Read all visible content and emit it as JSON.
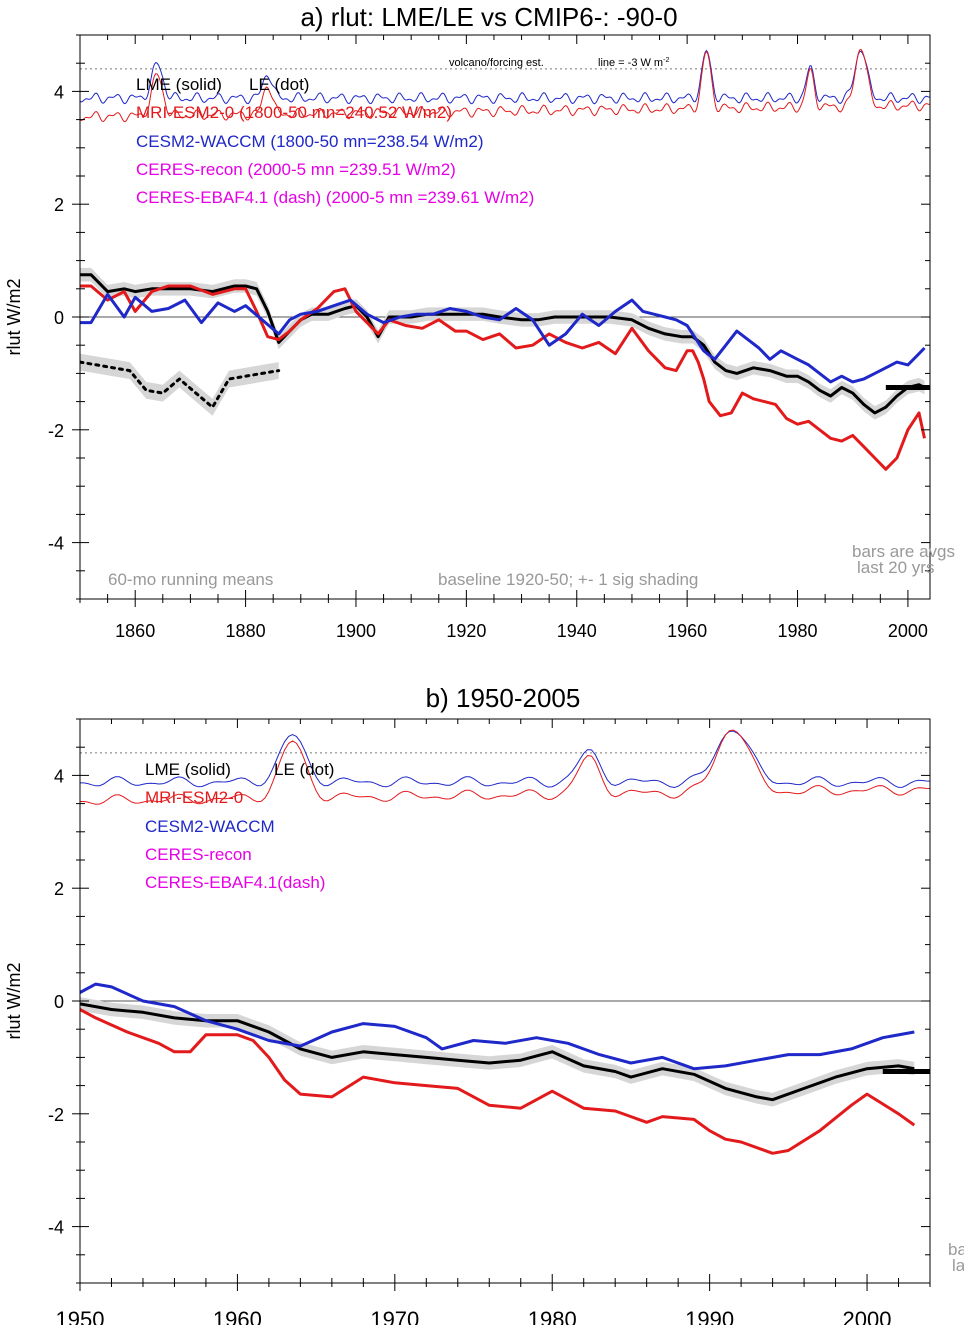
{
  "chart_data": [
    {
      "type": "line",
      "title": "a) rlut: LME/LE vs CMIP6-: -90-0",
      "ylabel": "rlut W/m2",
      "xlabel": "",
      "xlim": [
        1850,
        2004
      ],
      "ylim": [
        -5,
        5
      ],
      "xticks": [
        1860,
        1880,
        1900,
        1920,
        1940,
        1960,
        1980,
        2000
      ],
      "yticks": [
        4,
        2,
        0,
        -2,
        -4
      ],
      "legend": [
        {
          "text": "LME (solid)",
          "color": "#000000"
        },
        {
          "text": "LE (dot)",
          "color": "#000000"
        },
        {
          "text": "MRI-ESM2-0 (1800-50 mn=240.52 W/m2)",
          "color": "#e31a1c"
        },
        {
          "text": "CESM2-WACCM (1800-50 mn=238.54 W/m2)",
          "color": "#1f28c8"
        },
        {
          "text": "CERES-recon (2000-5 mn =239.51 W/m2)",
          "color": "#e600e6"
        },
        {
          "text": "CERES-EBAF4.1 (dash) (2000-5 mn =239.61 W/m2)",
          "color": "#e600e6"
        }
      ],
      "annotations": {
        "volcano": "volcano/forcing est.",
        "line": "line = -3 W m",
        "line_sup": "-2",
        "running": "60-mo running means",
        "baseline": "baseline 1920-50; +- 1 sig shading",
        "bars1": "bars are avgs",
        "bars2": "last 20 yrs"
      },
      "reference_level": 4.4,
      "series": [
        {
          "name": "LME",
          "color": "#000000",
          "style": "solid",
          "width": 3,
          "x": [
            1850,
            1852,
            1855,
            1858,
            1860,
            1863,
            1866,
            1870,
            1874,
            1878,
            1880,
            1882,
            1884,
            1886,
            1888,
            1890,
            1892,
            1895,
            1898,
            1900,
            1902,
            1904,
            1906,
            1908,
            1910,
            1913,
            1916,
            1920,
            1923,
            1926,
            1930,
            1933,
            1936,
            1940,
            1943,
            1946,
            1950,
            1953,
            1956,
            1959,
            1961,
            1963,
            1965,
            1967,
            1969,
            1972,
            1975,
            1978,
            1980,
            1982,
            1984,
            1986,
            1988,
            1990,
            1992,
            1994,
            1996,
            1998,
            2000,
            2002,
            2003
          ],
          "y": [
            0.75,
            0.75,
            0.45,
            0.5,
            0.45,
            0.5,
            0.5,
            0.5,
            0.45,
            0.55,
            0.55,
            0.5,
            0.1,
            -0.45,
            -0.25,
            -0.05,
            0.05,
            0.05,
            0.15,
            0.2,
            0.0,
            -0.35,
            0.0,
            0.0,
            0.0,
            0.05,
            0.05,
            0.05,
            0.05,
            0.0,
            -0.05,
            -0.05,
            0.0,
            0.0,
            0.0,
            0.0,
            -0.05,
            -0.2,
            -0.3,
            -0.35,
            -0.35,
            -0.5,
            -0.8,
            -0.95,
            -1.0,
            -0.9,
            -0.95,
            -1.05,
            -1.05,
            -1.15,
            -1.3,
            -1.4,
            -1.25,
            -1.35,
            -1.55,
            -1.7,
            -1.6,
            -1.4,
            -1.25,
            -1.2,
            -1.25
          ]
        },
        {
          "name": "MRI-ESM2-0",
          "color": "#e31a1c",
          "style": "solid",
          "width": 3,
          "x": [
            1850,
            1852,
            1855,
            1858,
            1860,
            1863,
            1866,
            1870,
            1874,
            1878,
            1880,
            1882,
            1884,
            1886,
            1888,
            1890,
            1893,
            1896,
            1898,
            1900,
            1902,
            1904,
            1906,
            1909,
            1912,
            1915,
            1918,
            1920,
            1923,
            1926,
            1929,
            1932,
            1935,
            1938,
            1941,
            1944,
            1947,
            1950,
            1953,
            1956,
            1958,
            1960,
            1961,
            1962,
            1963,
            1964,
            1966,
            1968,
            1970,
            1972,
            1974,
            1976,
            1978,
            1980,
            1982,
            1984,
            1986,
            1988,
            1990,
            1992,
            1994,
            1996,
            1998,
            2000,
            2002,
            2003
          ],
          "y": [
            0.55,
            0.55,
            0.3,
            0.45,
            0.1,
            0.45,
            0.55,
            0.55,
            0.4,
            0.5,
            0.5,
            0.1,
            -0.35,
            -0.4,
            -0.25,
            -0.05,
            0.15,
            0.45,
            0.5,
            0.1,
            -0.1,
            -0.3,
            -0.05,
            -0.15,
            -0.2,
            -0.05,
            -0.25,
            -0.25,
            -0.4,
            -0.3,
            -0.55,
            -0.5,
            -0.3,
            -0.45,
            -0.55,
            -0.45,
            -0.65,
            -0.2,
            -0.6,
            -0.9,
            -0.95,
            -0.6,
            -0.6,
            -0.8,
            -1.1,
            -1.5,
            -1.75,
            -1.7,
            -1.35,
            -1.45,
            -1.5,
            -1.55,
            -1.8,
            -1.9,
            -1.85,
            -2.0,
            -2.15,
            -2.2,
            -2.1,
            -2.3,
            -2.5,
            -2.7,
            -2.5,
            -2.0,
            -1.7,
            -2.15
          ]
        },
        {
          "name": "CESM2-WACCM",
          "color": "#1f28c8",
          "style": "solid",
          "width": 3,
          "x": [
            1850,
            1852,
            1855,
            1858,
            1860,
            1863,
            1866,
            1869,
            1872,
            1875,
            1878,
            1880,
            1883,
            1886,
            1888,
            1890,
            1893,
            1896,
            1899,
            1902,
            1905,
            1908,
            1911,
            1914,
            1917,
            1920,
            1923,
            1926,
            1929,
            1932,
            1935,
            1938,
            1941,
            1944,
            1947,
            1950,
            1952,
            1954,
            1956,
            1958,
            1960,
            1963,
            1965,
            1967,
            1969,
            1971,
            1973,
            1975,
            1977,
            1980,
            1982,
            1984,
            1986,
            1988,
            1990,
            1992,
            1994,
            1996,
            1998,
            2000,
            2002,
            2003
          ],
          "y": [
            -0.1,
            -0.1,
            0.4,
            0.0,
            0.35,
            0.1,
            0.15,
            0.3,
            -0.1,
            0.25,
            0.1,
            0.2,
            -0.05,
            -0.3,
            -0.05,
            0.05,
            0.1,
            0.2,
            0.3,
            0.05,
            -0.1,
            0.0,
            0.05,
            0.05,
            0.15,
            0.1,
            0.0,
            -0.05,
            0.15,
            -0.05,
            -0.5,
            -0.3,
            0.05,
            -0.15,
            0.1,
            0.3,
            0.1,
            0.05,
            0.0,
            -0.05,
            -0.15,
            -0.6,
            -0.75,
            -0.5,
            -0.25,
            -0.4,
            -0.55,
            -0.75,
            -0.6,
            -0.75,
            -0.85,
            -1.0,
            -1.15,
            -1.05,
            -1.15,
            -1.1,
            -1.0,
            -0.9,
            -0.8,
            -0.85,
            -0.65,
            -0.55
          ]
        },
        {
          "name": "LE",
          "color": "#000000",
          "style": "dot",
          "width": 3,
          "x": [
            1850,
            1853,
            1856,
            1859,
            1862,
            1865,
            1868,
            1871,
            1874,
            1877,
            1880,
            1883,
            1886
          ],
          "y": [
            -0.8,
            -0.85,
            -0.9,
            -0.95,
            -1.3,
            -1.35,
            -1.1,
            -1.35,
            -1.6,
            -1.1,
            -1.05,
            -1.0,
            -0.95
          ]
        }
      ],
      "obs_bar": {
        "x": [
          1996,
          2004
        ],
        "y": -1.25
      }
    },
    {
      "type": "line",
      "title": "b) 1950-2005",
      "ylabel": "rlut W/m2",
      "xlabel": "",
      "xlim": [
        1950,
        2004
      ],
      "ylim": [
        -5,
        5
      ],
      "xticks": [
        1950,
        1960,
        1970,
        1980,
        1990,
        2000
      ],
      "yticks": [
        4,
        2,
        0,
        -2,
        -4
      ],
      "legend": [
        {
          "text": "LME (solid)",
          "color": "#000000"
        },
        {
          "text": "LE (dot)",
          "color": "#000000"
        },
        {
          "text": "MRI-ESM2-0",
          "color": "#e31a1c"
        },
        {
          "text": "CESM2-WACCM",
          "color": "#1f28c8"
        },
        {
          "text": "CERES-recon",
          "color": "#e600e6"
        },
        {
          "text": "CERES-EBAF4.1(dash)",
          "color": "#e600e6"
        }
      ],
      "annotations": {
        "bars1": "ba",
        "bars2": "la"
      },
      "reference_level": 4.4,
      "series": [
        {
          "name": "LME",
          "color": "#000000",
          "style": "solid",
          "width": 3,
          "x": [
            1950,
            1952,
            1954,
            1956,
            1958,
            1960,
            1962,
            1964,
            1966,
            1968,
            1970,
            1972,
            1974,
            1976,
            1978,
            1980,
            1982,
            1984,
            1985,
            1987,
            1989,
            1991,
            1993,
            1994,
            1996,
            1998,
            2000,
            2002,
            2003
          ],
          "y": [
            -0.05,
            -0.15,
            -0.2,
            -0.3,
            -0.35,
            -0.35,
            -0.55,
            -0.85,
            -1.0,
            -0.9,
            -0.95,
            -1.0,
            -1.05,
            -1.1,
            -1.05,
            -0.9,
            -1.15,
            -1.25,
            -1.35,
            -1.2,
            -1.3,
            -1.55,
            -1.7,
            -1.75,
            -1.55,
            -1.35,
            -1.2,
            -1.15,
            -1.2
          ]
        },
        {
          "name": "MRI-ESM2-0",
          "color": "#e31a1c",
          "style": "solid",
          "width": 3,
          "x": [
            1950,
            1951,
            1953,
            1955,
            1956,
            1957,
            1958,
            1960,
            1961,
            1962,
            1963,
            1964,
            1966,
            1968,
            1970,
            1972,
            1974,
            1976,
            1978,
            1979,
            1980,
            1981,
            1982,
            1984,
            1986,
            1987,
            1989,
            1990,
            1991,
            1992,
            1994,
            1995,
            1997,
            1999,
            2000,
            2002,
            2003
          ],
          "y": [
            -0.15,
            -0.3,
            -0.55,
            -0.75,
            -0.9,
            -0.9,
            -0.6,
            -0.6,
            -0.7,
            -1.0,
            -1.4,
            -1.65,
            -1.7,
            -1.35,
            -1.45,
            -1.5,
            -1.55,
            -1.85,
            -1.9,
            -1.75,
            -1.6,
            -1.75,
            -1.9,
            -1.95,
            -2.15,
            -2.05,
            -2.1,
            -2.3,
            -2.45,
            -2.5,
            -2.7,
            -2.65,
            -2.3,
            -1.85,
            -1.65,
            -2.0,
            -2.2
          ]
        },
        {
          "name": "CESM2-WACCM",
          "color": "#1f28c8",
          "style": "solid",
          "width": 3,
          "x": [
            1950,
            1951,
            1952,
            1954,
            1956,
            1958,
            1960,
            1962,
            1964,
            1966,
            1968,
            1970,
            1972,
            1973,
            1975,
            1977,
            1979,
            1981,
            1983,
            1985,
            1987,
            1989,
            1991,
            1993,
            1995,
            1997,
            1999,
            2001,
            2003
          ],
          "y": [
            0.15,
            0.3,
            0.25,
            0.0,
            -0.1,
            -0.35,
            -0.5,
            -0.7,
            -0.8,
            -0.55,
            -0.4,
            -0.45,
            -0.65,
            -0.85,
            -0.7,
            -0.75,
            -0.65,
            -0.75,
            -0.95,
            -1.1,
            -1.0,
            -1.2,
            -1.15,
            -1.05,
            -0.95,
            -0.95,
            -0.85,
            -0.65,
            -0.55
          ]
        }
      ],
      "obs_bar": {
        "x": [
          2001,
          2004
        ],
        "y": -1.25
      }
    }
  ],
  "colors": {
    "lme": "#000000",
    "mri": "#e31a1c",
    "cesm": "#1f28c8",
    "ceres": "#e600e6",
    "shade": "#d6d6d6",
    "note": "#999999"
  }
}
